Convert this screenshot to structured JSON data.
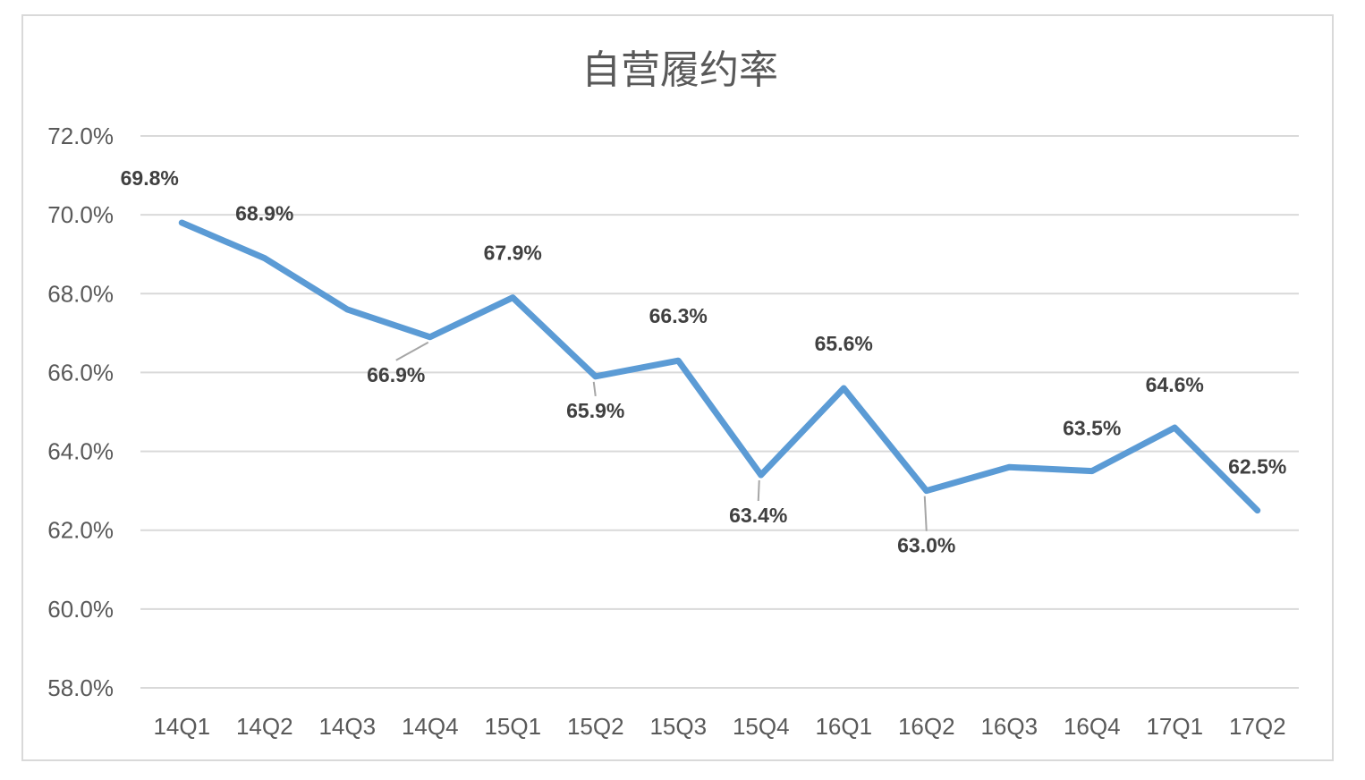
{
  "chart_data": {
    "type": "line",
    "title": "自营履约率",
    "xlabel": "",
    "ylabel": "",
    "categories": [
      "14Q1",
      "14Q2",
      "14Q3",
      "14Q4",
      "15Q1",
      "15Q2",
      "15Q3",
      "15Q4",
      "16Q1",
      "16Q2",
      "16Q3",
      "16Q4",
      "17Q1",
      "17Q2"
    ],
    "series": [
      {
        "values": [
          69.8,
          68.9,
          67.6,
          66.9,
          67.9,
          65.9,
          66.3,
          63.4,
          65.6,
          63.0,
          63.6,
          63.5,
          64.6,
          62.5
        ],
        "color": "#5b9bd5"
      }
    ],
    "data_labels": [
      "69.8%",
      "68.9%",
      "",
      "66.9%",
      "67.9%",
      "65.9%",
      "66.3%",
      "63.4%",
      "65.6%",
      "63.0%",
      "",
      "63.5%",
      "64.6%",
      "62.5%"
    ],
    "y_ticks": [
      "58.0%",
      "60.0%",
      "62.0%",
      "64.0%",
      "66.0%",
      "68.0%",
      "70.0%",
      "72.0%"
    ],
    "ylim": [
      58,
      72
    ],
    "grid": true,
    "legend": "none"
  }
}
